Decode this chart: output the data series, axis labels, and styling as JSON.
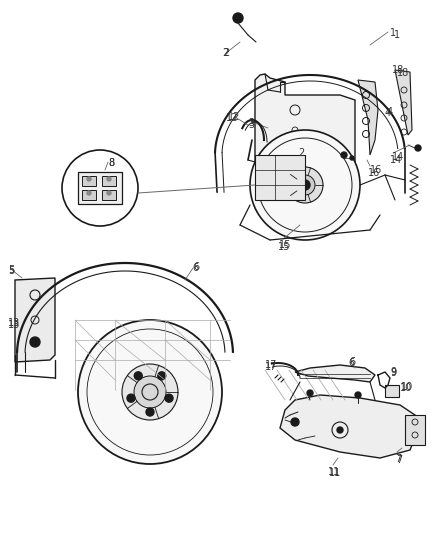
{
  "bg_color": "#ffffff",
  "lc": "#1a1a1a",
  "lc_light": "#666666",
  "figsize": [
    4.38,
    5.33
  ],
  "dpi": 100,
  "label_fs": 7.0,
  "label_color": "#333333"
}
